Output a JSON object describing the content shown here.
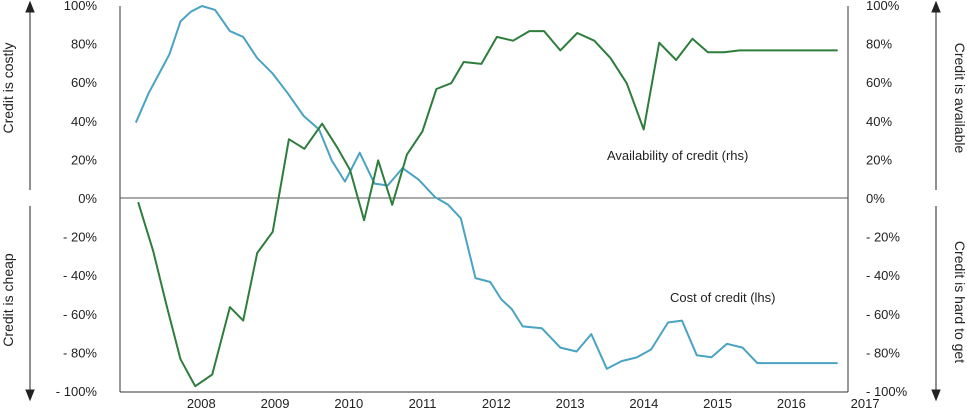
{
  "chart_data": {
    "type": "line",
    "x_labels": [
      "2008",
      "2009",
      "2010",
      "2011",
      "2012",
      "2013",
      "2014",
      "2015",
      "2016",
      "2017"
    ],
    "x_range": [
      2007.33,
      2017.2
    ],
    "ylim": [
      -100,
      100
    ],
    "left_ticks": [
      "100%",
      "80%",
      "60%",
      "40%",
      "20%",
      "0%",
      "- 20%",
      "- 40%",
      "- 60%",
      "- 80%",
      "- 100%"
    ],
    "right_ticks": [
      "100%",
      "80%",
      "60%",
      "40%",
      "20%",
      "0%",
      "- 20%",
      "- 40%",
      "- 60%",
      "- 80%",
      "- 100%"
    ],
    "left_top_label": "Credit is costly",
    "left_bottom_label": "Credit is cheap",
    "right_top_label": "Credit is available",
    "right_bottom_label": "Credit is hard to get",
    "series": [
      {
        "name": "Cost of credit (lhs)",
        "color": "#4aa3c2",
        "x": [
          2007.55,
          2007.72,
          2007.86,
          2008.0,
          2008.15,
          2008.29,
          2008.44,
          2008.62,
          2008.82,
          2009.0,
          2009.19,
          2009.4,
          2009.6,
          2009.82,
          2010.03,
          2010.2,
          2010.38,
          2010.58,
          2010.78,
          2010.96,
          2011.16,
          2011.38,
          2011.6,
          2011.78,
          2011.95,
          2012.15,
          2012.35,
          2012.5,
          2012.64,
          2012.79,
          2013.05,
          2013.3,
          2013.52,
          2013.72,
          2013.93,
          2014.13,
          2014.34,
          2014.53,
          2014.76,
          2014.95,
          2015.15,
          2015.35,
          2015.56,
          2015.77,
          2015.97,
          2016.18,
          2016.4,
          2016.62,
          2016.82,
          2017.05
        ],
        "y": [
          40,
          55,
          65,
          75,
          92,
          97,
          100,
          98,
          87,
          84,
          73,
          65,
          55,
          43,
          36,
          20,
          9,
          24,
          8,
          7,
          16,
          10,
          1,
          -3,
          -10,
          -41,
          -43,
          -52,
          -57,
          -66,
          -67,
          -77,
          -79,
          -70,
          -88,
          -84,
          -82,
          -78,
          -64,
          -63,
          -81,
          -82,
          -75,
          -77,
          -85,
          -85,
          -85,
          -85,
          -85,
          -85
        ]
      },
      {
        "name": "Availability of credit (rhs)",
        "color": "#2e7d3c",
        "x": [
          2007.58,
          2007.78,
          2007.96,
          2008.15,
          2008.35,
          2008.58,
          2008.82,
          2009.0,
          2009.19,
          2009.4,
          2009.62,
          2009.83,
          2010.07,
          2010.27,
          2010.45,
          2010.64,
          2010.83,
          2011.02,
          2011.22,
          2011.43,
          2011.62,
          2011.82,
          2011.99,
          2012.23,
          2012.44,
          2012.66,
          2012.88,
          2013.08,
          2013.3,
          2013.53,
          2013.76,
          2013.98,
          2014.2,
          2014.43,
          2014.64,
          2014.87,
          2015.09,
          2015.3,
          2015.52,
          2015.73,
          2015.93,
          2016.14,
          2016.35,
          2016.56,
          2016.76,
          2016.97,
          2017.05
        ],
        "y": [
          -2,
          -27,
          -55,
          -83,
          -97,
          -91,
          -56,
          -63,
          -28,
          -17,
          31,
          26,
          39,
          27,
          15,
          -11,
          20,
          -3,
          23,
          35,
          57,
          60,
          71,
          70,
          84,
          82,
          87,
          87,
          77,
          86,
          82,
          73,
          60,
          36,
          81,
          72,
          83,
          76,
          76,
          77,
          77,
          77,
          77,
          77,
          77,
          77,
          77
        ]
      }
    ],
    "annotations": [
      "Availability of credit (rhs)",
      "Cost of credit (lhs)"
    ]
  }
}
